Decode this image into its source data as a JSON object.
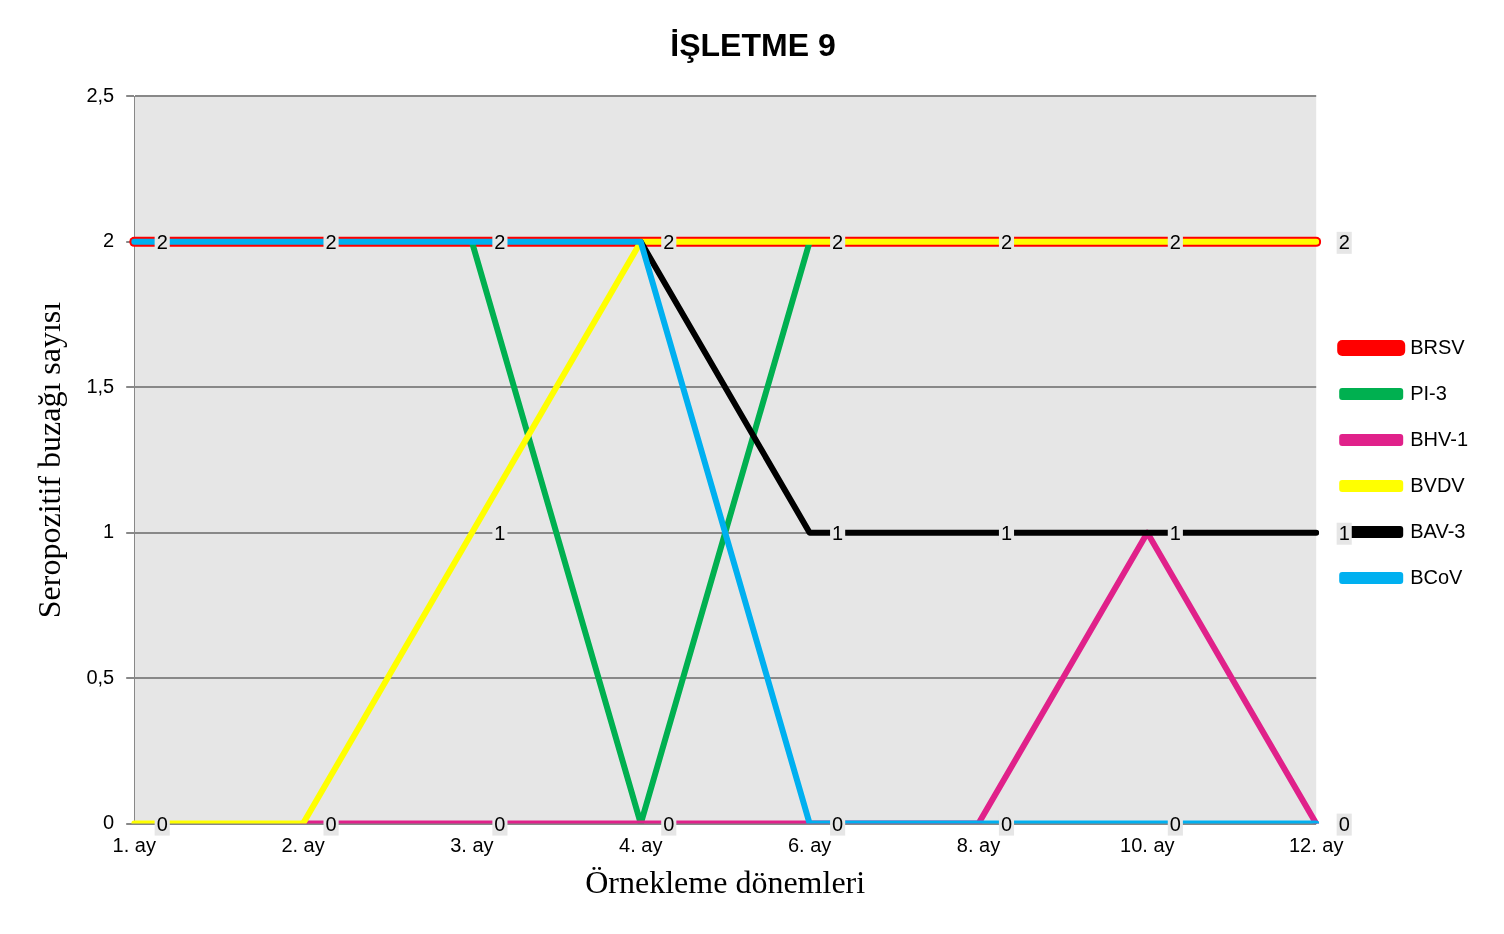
{
  "chart_data": {
    "type": "line",
    "title": "İŞLETME 9",
    "xlabel": "Örnekleme dönemleri",
    "ylabel": "Seropozitif buzağı sayısı",
    "categories": [
      "1. ay",
      "2. ay",
      "3. ay",
      "4. ay",
      "6. ay",
      "8. ay",
      "10. ay",
      "12. ay"
    ],
    "series": [
      {
        "name": "BRSV",
        "color": "#ff0000",
        "values": [
          2,
          2,
          2,
          2,
          2,
          2,
          2,
          2
        ],
        "value_labels": [
          "2",
          "2",
          "2",
          "2",
          "2",
          "2",
          "2",
          "2"
        ]
      },
      {
        "name": "PI-3",
        "color": "#00b050",
        "values": [
          null,
          null,
          2,
          0,
          2,
          null,
          null,
          null
        ]
      },
      {
        "name": "BHV-1",
        "color": "#e0218a",
        "values": [
          null,
          0,
          0,
          0,
          0,
          0,
          1,
          0
        ],
        "value_labels": [
          null,
          null,
          "0",
          "0",
          null,
          null,
          null,
          null
        ]
      },
      {
        "name": "BVDV",
        "color": "#ffff00",
        "values": [
          0,
          0,
          1,
          2,
          2,
          2,
          2,
          2
        ],
        "value_labels": [
          "0",
          "0",
          "1",
          null,
          null,
          null,
          null,
          null
        ]
      },
      {
        "name": "BAV-3",
        "color": "#000000",
        "values": [
          null,
          null,
          null,
          2,
          1,
          1,
          1,
          1
        ],
        "value_labels": [
          null,
          null,
          null,
          null,
          "1",
          "1",
          "1",
          "1"
        ]
      },
      {
        "name": "BCoV",
        "color": "#00b0f0",
        "values": [
          2,
          2,
          2,
          2,
          0,
          0,
          0,
          0
        ],
        "value_labels": [
          null,
          null,
          null,
          null,
          "0",
          "0",
          "0",
          "0"
        ]
      }
    ],
    "ylim": [
      0,
      2.5
    ],
    "yticks": [
      0,
      {
        "value": 0.5,
        "label": "0,5"
      },
      1,
      {
        "value": 1.5,
        "label": "1,5"
      },
      2,
      {
        "value": 2.5,
        "label": "2,5"
      }
    ],
    "grid": "y",
    "legend": "right",
    "marker": "none",
    "line_style": "solid"
  }
}
